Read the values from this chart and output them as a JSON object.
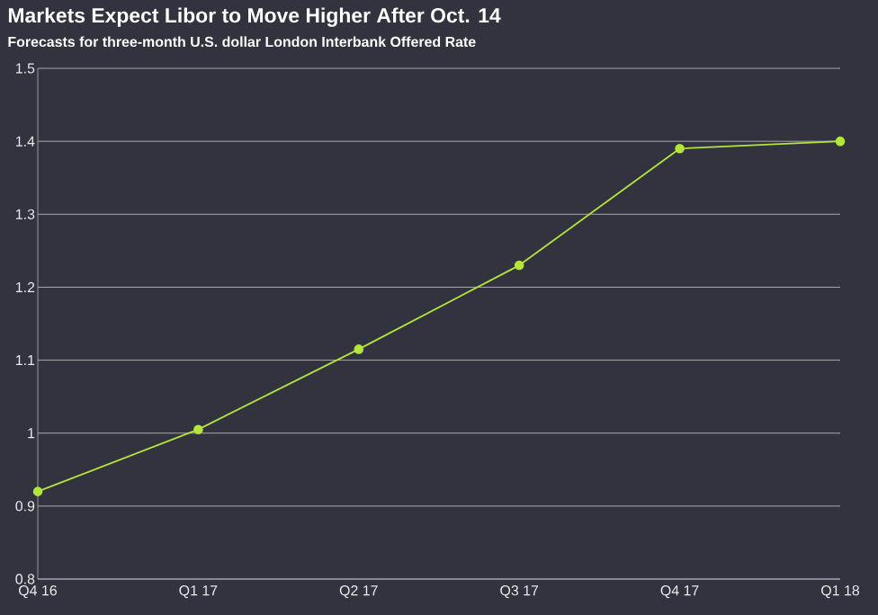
{
  "chart_data": {
    "type": "line",
    "title": "Markets Expect Libor to Move Higher After Oct. 14",
    "subtitle": "Forecasts for three-month U.S. dollar London Interbank Offered Rate",
    "categories": [
      "Q4 16",
      "Q1 17",
      "Q2 17",
      "Q3 17",
      "Q4 17",
      "Q1 18"
    ],
    "series": [
      {
        "color": "#b3e639",
        "values": [
          0.92,
          1.005,
          1.115,
          1.23,
          1.39,
          1.4
        ]
      }
    ],
    "ylim": [
      0.8,
      1.5
    ],
    "yticks": [
      0.8,
      0.9,
      1,
      1.1,
      1.2,
      1.3,
      1.4,
      1.5
    ],
    "grid": "y",
    "marker": "circle",
    "line_style": "solid"
  }
}
